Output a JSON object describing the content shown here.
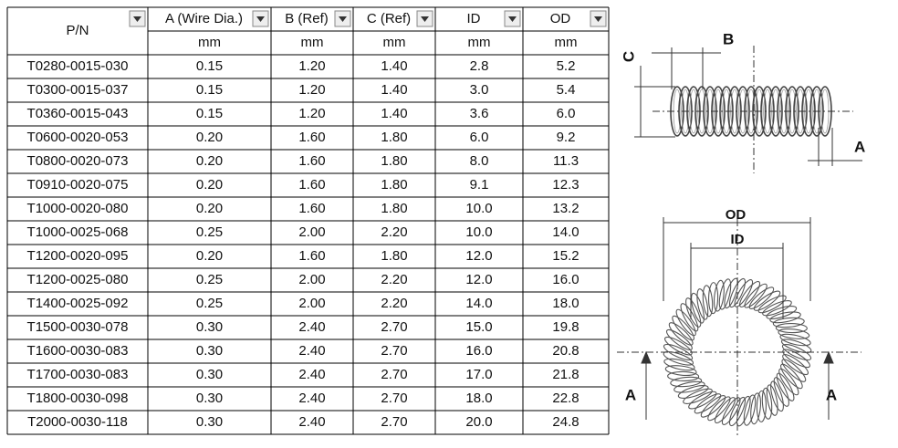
{
  "table": {
    "header": [
      "P/N",
      "A (Wire Dia.)",
      "B (Ref)",
      "C (Ref)",
      "ID",
      "OD"
    ],
    "units": [
      "mm",
      "mm",
      "mm",
      "mm",
      "mm"
    ],
    "rows": [
      [
        "T0280-0015-030",
        "0.15",
        "1.20",
        "1.40",
        "2.8",
        "5.2"
      ],
      [
        "T0300-0015-037",
        "0.15",
        "1.20",
        "1.40",
        "3.0",
        "5.4"
      ],
      [
        "T0360-0015-043",
        "0.15",
        "1.20",
        "1.40",
        "3.6",
        "6.0"
      ],
      [
        "T0600-0020-053",
        "0.20",
        "1.60",
        "1.80",
        "6.0",
        "9.2"
      ],
      [
        "T0800-0020-073",
        "0.20",
        "1.60",
        "1.80",
        "8.0",
        "11.3"
      ],
      [
        "T0910-0020-075",
        "0.20",
        "1.60",
        "1.80",
        "9.1",
        "12.3"
      ],
      [
        "T1000-0020-080",
        "0.20",
        "1.60",
        "1.80",
        "10.0",
        "13.2"
      ],
      [
        "T1000-0025-068",
        "0.25",
        "2.00",
        "2.20",
        "10.0",
        "14.0"
      ],
      [
        "T1200-0020-095",
        "0.20",
        "1.60",
        "1.80",
        "12.0",
        "15.2"
      ],
      [
        "T1200-0025-080",
        "0.25",
        "2.00",
        "2.20",
        "12.0",
        "16.0"
      ],
      [
        "T1400-0025-092",
        "0.25",
        "2.00",
        "2.20",
        "14.0",
        "18.0"
      ],
      [
        "T1500-0030-078",
        "0.30",
        "2.40",
        "2.70",
        "15.0",
        "19.8"
      ],
      [
        "T1600-0030-083",
        "0.30",
        "2.40",
        "2.70",
        "16.0",
        "20.8"
      ],
      [
        "T1700-0030-083",
        "0.30",
        "2.40",
        "2.70",
        "17.0",
        "21.8"
      ],
      [
        "T1800-0030-098",
        "0.30",
        "2.40",
        "2.70",
        "18.0",
        "22.8"
      ],
      [
        "T2000-0030-118",
        "0.30",
        "2.40",
        "2.70",
        "20.0",
        "24.8"
      ]
    ]
  },
  "diagram": {
    "side": {
      "b": "B",
      "c": "C",
      "a": "A"
    },
    "ring": {
      "od": "OD",
      "id": "ID",
      "a_left": "A",
      "a_right": "A"
    }
  }
}
